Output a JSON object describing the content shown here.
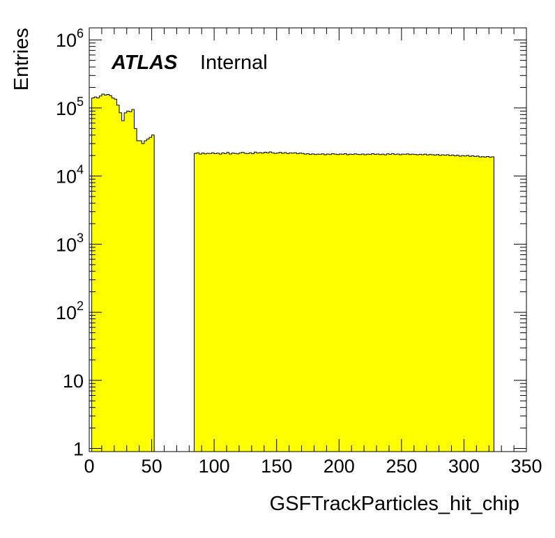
{
  "chart_data": {
    "type": "histogram",
    "xlabel": "GSFTrackParticles_hit_chip",
    "ylabel": "Entries",
    "label_bold": "ATLAS",
    "label_normal": "Internal",
    "xlim": [
      0,
      350
    ],
    "ylim": [
      0.9,
      1500000
    ],
    "yscale": "log",
    "fill_color": "#ffff00",
    "line_color": "#000000",
    "grid": false,
    "x_ticks": [
      {
        "value": 0,
        "label": "0"
      },
      {
        "value": 50,
        "label": "50"
      },
      {
        "value": 100,
        "label": "100"
      },
      {
        "value": 150,
        "label": "150"
      },
      {
        "value": 200,
        "label": "200"
      },
      {
        "value": 250,
        "label": "250"
      },
      {
        "value": 300,
        "label": "300"
      },
      {
        "value": 350,
        "label": "350"
      }
    ],
    "y_ticks": [
      {
        "value": 1,
        "base": "1",
        "exp": ""
      },
      {
        "value": 10,
        "base": "10",
        "exp": ""
      },
      {
        "value": 100,
        "base": "10",
        "exp": "2"
      },
      {
        "value": 1000,
        "base": "10",
        "exp": "3"
      },
      {
        "value": 10000,
        "base": "10",
        "exp": "4"
      },
      {
        "value": 100000,
        "base": "10",
        "exp": "5"
      },
      {
        "value": 1000000,
        "base": "10",
        "exp": "6"
      }
    ],
    "segments": [
      {
        "start": 2,
        "bin_width": 2,
        "values": [
          140000,
          145000,
          140000,
          150000,
          160000,
          155000,
          158000,
          152000,
          140000,
          135000,
          110000,
          85000,
          65000,
          85000,
          90000,
          88000,
          95000,
          50000,
          33000,
          33000,
          30000,
          33000,
          35000,
          37000,
          40000
        ]
      },
      {
        "start": 84,
        "bin_width": 2,
        "values": [
          21500,
          22000,
          21000,
          21800,
          21200,
          21600,
          21400,
          22000,
          21300,
          21700,
          21000,
          21900,
          21400,
          22200,
          21100,
          21800,
          21500,
          21200,
          21900,
          22300,
          21600,
          21400,
          22000,
          21300,
          22500,
          21800,
          22100,
          21700,
          22400,
          21900,
          22600,
          22000,
          21500,
          21800,
          22300,
          21600,
          22100,
          21400,
          21900,
          21700,
          22000,
          21300,
          21800,
          21500,
          21000,
          21300,
          20800,
          21200,
          20700,
          21000,
          20900,
          21200,
          20600,
          21100,
          20800,
          21300,
          21000,
          20700,
          21100,
          20900,
          21300,
          20600,
          21000,
          20800,
          21200,
          20900,
          20700,
          21100,
          20600,
          21000,
          20800,
          21300,
          20900,
          21100,
          20700,
          21000,
          20500,
          21200,
          20900,
          21400,
          20800,
          21100,
          20600,
          21000,
          20900,
          21200,
          20700,
          21000,
          20800,
          20500,
          20900,
          20600,
          21000,
          20400,
          20800,
          20600,
          20300,
          20700,
          20100,
          20500,
          20200,
          20600,
          20000,
          20400,
          19800,
          20200,
          19600,
          20000,
          19700,
          20100,
          19500,
          19900,
          19400,
          19700,
          19100,
          19300,
          19000,
          19400,
          18900,
          19200
        ]
      }
    ]
  }
}
